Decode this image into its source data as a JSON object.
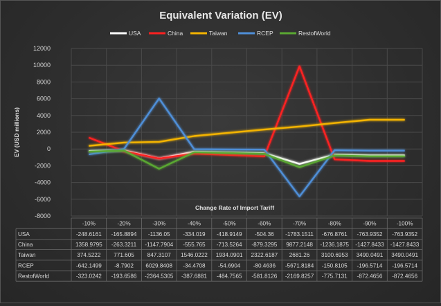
{
  "chart_data": {
    "type": "line",
    "title": "Equivalent Variation (EV)",
    "xlabel": "Change Rate of Import Tariff",
    "ylabel": "EV (USD millions)",
    "ylim": [
      -8000,
      12000
    ],
    "ytick_step": 2000,
    "yticks": [
      "12000",
      "10000",
      "8000",
      "6000",
      "4000",
      "2000",
      "0",
      "-2000",
      "-4000",
      "-6000",
      "-8000"
    ],
    "legend_position": "top",
    "grid": true,
    "categories": [
      "-10%",
      "-20%",
      "-30%",
      "-40%",
      "-50%",
      "-60%",
      "-70%",
      "-80%",
      "-90%",
      "-100%"
    ],
    "series": [
      {
        "name": "USA",
        "color": "#ffffff",
        "values": [
          -248.6161,
          -165.8894,
          -1136.05,
          -334.019,
          -418.9149,
          -504.36,
          -1783.1511,
          -676.8761,
          -763.9352,
          -763.9352
        ],
        "labels": [
          "-248.6161",
          "-165.8894",
          "-1136.05",
          "-334.019",
          "-418.9149",
          "-504.36",
          "-1783.1511",
          "-676.8761",
          "-763.9352",
          "-763.9352"
        ]
      },
      {
        "name": "China",
        "color": "#ff2020",
        "values": [
          1358.9795,
          -263.3211,
          -1147.7904,
          -555.765,
          -713.5264,
          -879.3295,
          9877.2148,
          -1236.1875,
          -1427.8433,
          -1427.8433
        ],
        "labels": [
          "1358.9795",
          "-263.3211",
          "-1147.7904",
          "-555.765",
          "-713.5264",
          "-879.3295",
          "9877.2148",
          "-1236.1875",
          "-1427.8433",
          "-1427.8433"
        ]
      },
      {
        "name": "Taiwan",
        "color": "#f4b400",
        "values": [
          374.5222,
          771.605,
          847.3107,
          1546.0222,
          1934.0901,
          2322.6187,
          2681.26,
          3100.6953,
          3490.0491,
          3490.0491
        ],
        "labels": [
          "374.5222",
          "771.605",
          "847.3107",
          "1546.0222",
          "1934.0901",
          "2322.6187",
          "2681.26",
          "3100.6953",
          "3490.0491",
          "3490.0491"
        ]
      },
      {
        "name": "RCEP",
        "color": "#4f8fd8",
        "values": [
          -642.1499,
          -8.7902,
          6029.8408,
          -34.4708,
          -54.6904,
          -80.4636,
          -5671.8184,
          -150.8105,
          -196.5714,
          -196.5714
        ],
        "labels": [
          "-642.1499",
          "-8.7902",
          "6029.8408",
          "-34.4708",
          "-54.6904",
          "-80.4636",
          "-5671.8184",
          "-150.8105",
          "-196.5714",
          "-196.5714"
        ]
      },
      {
        "name": "RestofWorld",
        "color": "#5aa832",
        "values": [
          -323.0242,
          -193.6586,
          -2364.5305,
          -387.6881,
          -484.7565,
          -581.8126,
          -2169.8257,
          -775.7131,
          -872.4656,
          -872.4656
        ],
        "labels": [
          "-323.0242",
          "-193.6586",
          "-2364.5305",
          "-387.6881",
          "-484.7565",
          "-581.8126",
          "-2169.8257",
          "-775.7131",
          "-872.4656",
          "-872.4656"
        ]
      }
    ]
  }
}
